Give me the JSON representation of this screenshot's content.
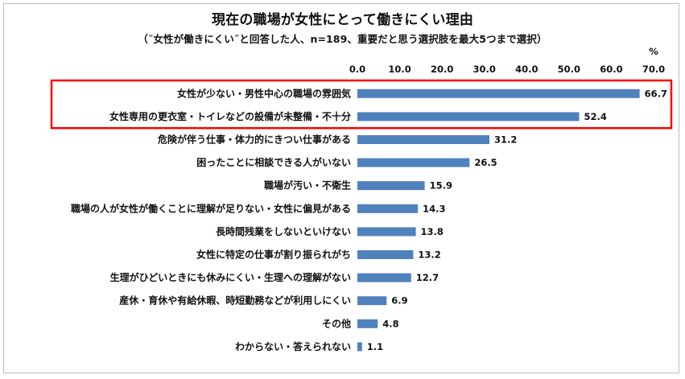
{
  "chart_data": {
    "type": "bar",
    "orientation": "horizontal",
    "title": "現在の職場が女性にとって働きにくい理由",
    "subtitle": "（˝女性が働きにくい˝と回答した人、n=189、重要だと思う選択肢を最大5つまで選択）",
    "unit": "%",
    "xlim": [
      0,
      70
    ],
    "ticks": [
      "0.0",
      "10.0",
      "20.0",
      "30.0",
      "40.0",
      "50.0",
      "60.0",
      "70.0"
    ],
    "grid": false,
    "bar_color": "#4f81bd",
    "highlight_color": "#ff0000",
    "highlighted_indices": [
      0,
      1
    ],
    "categories": [
      "女性が少ない・男性中心の職場の雰囲気",
      "女性専用の更衣室・トイレなどの設備が未整備・不十分",
      "危険が伴う仕事・体力的にきつい仕事がある",
      "困ったことに相談できる人がいない",
      "職場が汚い・不衛生",
      "職場の人が女性が働くことに理解が足りない・女性に偏見がある",
      "長時間残業をしないといけない",
      "女性に特定の仕事が割り振られがち",
      "生理がひどいときにも休みにくい・生理への理解がない",
      "産休・育休や有給休暇、時短勤務などが利用しにくい",
      "その他",
      "わからない・答えられない"
    ],
    "values": [
      66.7,
      52.4,
      31.2,
      26.5,
      15.9,
      14.3,
      13.8,
      13.2,
      12.7,
      6.9,
      4.8,
      1.1
    ],
    "value_labels": [
      "66.7",
      "52.4",
      "31.2",
      "26.5",
      "15.9",
      "14.3",
      "13.8",
      "13.2",
      "12.7",
      "6.9",
      "4.8",
      "1.1"
    ]
  }
}
